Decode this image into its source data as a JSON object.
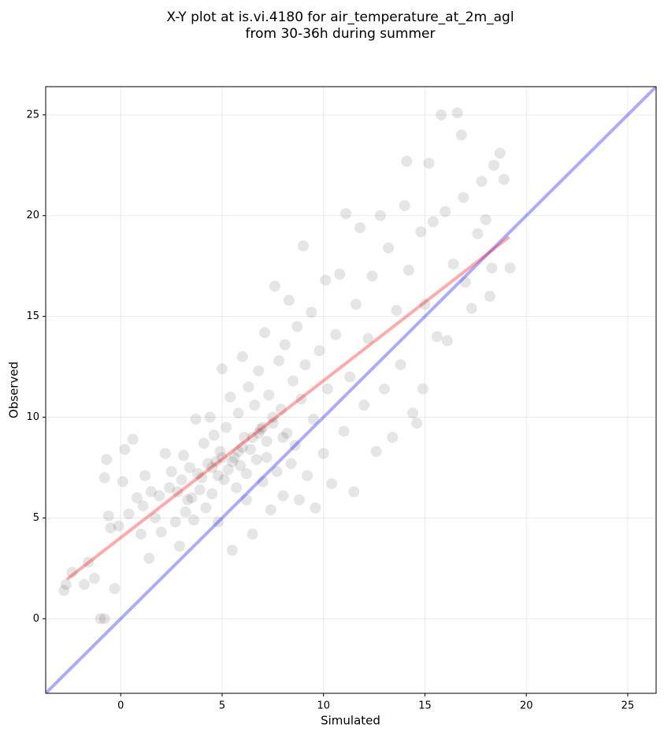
{
  "chart_data": {
    "type": "scatter",
    "title": [
      "X-Y plot at is.vi.4180 for air_temperature_at_2m_agl",
      "from 30-36h during summer"
    ],
    "xlabel": "Simulated",
    "ylabel": "Observed",
    "xlim": [
      -3.7,
      26.4
    ],
    "ylim": [
      -3.7,
      26.4
    ],
    "xticks": [
      0,
      5,
      10,
      15,
      20,
      25
    ],
    "yticks": [
      0,
      5,
      10,
      15,
      20,
      25
    ],
    "grid": true,
    "point_color": "#000000",
    "x": [
      -2.8,
      -2.7,
      -2.4,
      -1.8,
      -1.6,
      -1.3,
      -1.0,
      -0.8,
      -0.7,
      -0.8,
      -0.6,
      -0.5,
      -0.3,
      -0.1,
      0.1,
      0.2,
      0.4,
      0.6,
      0.8,
      1.0,
      1.1,
      1.2,
      1.4,
      1.5,
      1.7,
      1.9,
      2.0,
      2.2,
      2.4,
      2.5,
      2.7,
      2.9,
      3.0,
      3.1,
      3.3,
      3.4,
      3.6,
      3.7,
      3.8,
      3.9,
      4.1,
      4.2,
      4.3,
      4.4,
      4.5,
      4.6,
      4.7,
      4.8,
      4.9,
      5.0,
      5.1,
      5.2,
      5.3,
      5.4,
      5.5,
      5.6,
      5.7,
      5.8,
      5.9,
      6.0,
      6.1,
      6.2,
      6.3,
      6.4,
      6.5,
      6.6,
      6.7,
      6.8,
      6.9,
      7.0,
      7.1,
      7.2,
      7.3,
      7.4,
      7.5,
      7.6,
      7.7,
      7.8,
      7.9,
      8.0,
      8.1,
      8.2,
      8.3,
      8.4,
      8.5,
      8.6,
      8.7,
      8.8,
      8.9,
      9.0,
      9.1,
      9.2,
      9.4,
      9.5,
      9.6,
      9.8,
      10.0,
      10.1,
      10.2,
      10.4,
      10.6,
      10.8,
      11.0,
      11.1,
      11.3,
      11.5,
      11.6,
      11.8,
      12.0,
      12.2,
      12.4,
      12.6,
      12.8,
      13.0,
      13.2,
      13.4,
      13.6,
      13.8,
      14.0,
      14.1,
      14.2,
      14.4,
      14.6,
      14.8,
      14.9,
      15.0,
      15.2,
      15.4,
      15.6,
      15.8,
      16.0,
      16.1,
      16.4,
      16.6,
      16.8,
      16.9,
      17.0,
      17.3,
      17.6,
      17.8,
      18.0,
      18.2,
      18.3,
      18.4,
      18.7,
      18.9,
      19.2,
      3.5,
      4.0,
      4.5,
      5.0,
      5.5,
      6.0,
      6.5,
      7.0,
      7.5,
      6.8,
      5.8,
      4.8,
      7.2,
      6.2,
      8.0,
      2.8,
      3.2
    ],
    "y": [
      1.4,
      1.7,
      2.3,
      1.7,
      2.8,
      2.0,
      0.0,
      0.0,
      7.9,
      7.0,
      5.1,
      4.5,
      1.5,
      4.6,
      6.8,
      8.4,
      5.2,
      8.9,
      6.0,
      4.2,
      5.6,
      7.1,
      3.0,
      6.3,
      5.0,
      6.1,
      4.3,
      8.2,
      6.5,
      7.3,
      4.8,
      3.6,
      6.9,
      8.1,
      5.9,
      7.5,
      4.9,
      9.9,
      7.2,
      6.4,
      8.7,
      5.5,
      7.7,
      10.0,
      6.2,
      9.1,
      7.8,
      4.8,
      8.3,
      12.4,
      6.9,
      9.5,
      7.4,
      11.0,
      3.4,
      8.0,
      6.5,
      10.2,
      7.6,
      13.0,
      9.0,
      5.9,
      11.5,
      8.4,
      4.2,
      10.6,
      7.9,
      12.3,
      9.4,
      6.8,
      14.2,
      8.8,
      11.1,
      5.4,
      9.7,
      16.5,
      7.3,
      12.8,
      10.4,
      6.1,
      13.6,
      9.2,
      15.8,
      7.7,
      11.8,
      8.6,
      14.5,
      5.9,
      10.9,
      18.5,
      12.6,
      7.1,
      15.2,
      9.9,
      5.5,
      13.3,
      8.2,
      16.8,
      11.4,
      6.7,
      14.1,
      17.1,
      9.3,
      20.1,
      12.0,
      6.3,
      15.6,
      19.4,
      10.6,
      13.9,
      17.0,
      8.3,
      20.0,
      11.4,
      18.4,
      9.0,
      15.3,
      12.6,
      20.5,
      22.7,
      17.3,
      10.2,
      9.7,
      19.2,
      11.4,
      15.6,
      22.6,
      19.7,
      14.0,
      25.0,
      20.2,
      13.8,
      17.6,
      25.1,
      24.0,
      20.9,
      16.7,
      15.4,
      19.1,
      21.7,
      19.8,
      16.0,
      17.4,
      22.5,
      23.1,
      21.8,
      17.4,
      6.0,
      7.0,
      7.5,
      8.0,
      7.8,
      8.5,
      9.0,
      9.5,
      10.0,
      9.2,
      8.3,
      7.1,
      8.0,
      7.2,
      9.0,
      6.3,
      5.3
    ],
    "lines": [
      {
        "x": [
          -3.7,
          26.4
        ],
        "y": [
          -3.7,
          26.4
        ],
        "color": "#0000ff"
      },
      {
        "x": [
          -2.6,
          19.1
        ],
        "y": [
          2.0,
          18.9
        ],
        "color": "#ff0000"
      }
    ]
  }
}
